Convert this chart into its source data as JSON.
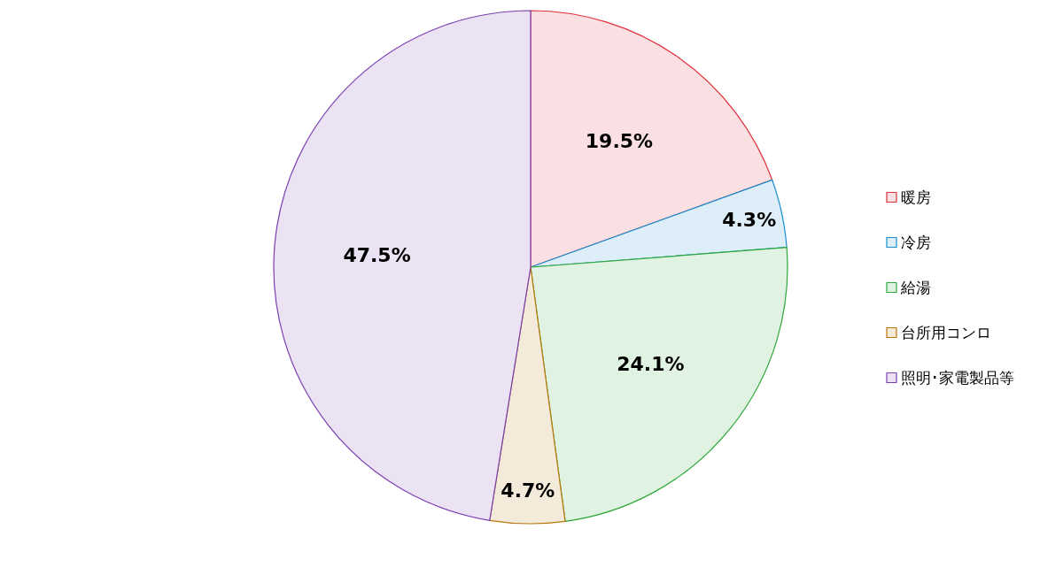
{
  "chart_data": {
    "type": "pie",
    "categories": [
      "暖房",
      "冷房",
      "給湯",
      "台所用コンロ",
      "照明･家電製品等"
    ],
    "values": [
      19.5,
      4.3,
      24.1,
      4.7,
      47.5
    ],
    "colors": [
      "#e0303c",
      "#1a8fd0",
      "#2ea83a",
      "#b8760a",
      "#7a3fb0"
    ],
    "value_labels": [
      "19.5%",
      "4.3%",
      "24.1%",
      "4.7%",
      "47.5%"
    ],
    "legend": "right"
  }
}
